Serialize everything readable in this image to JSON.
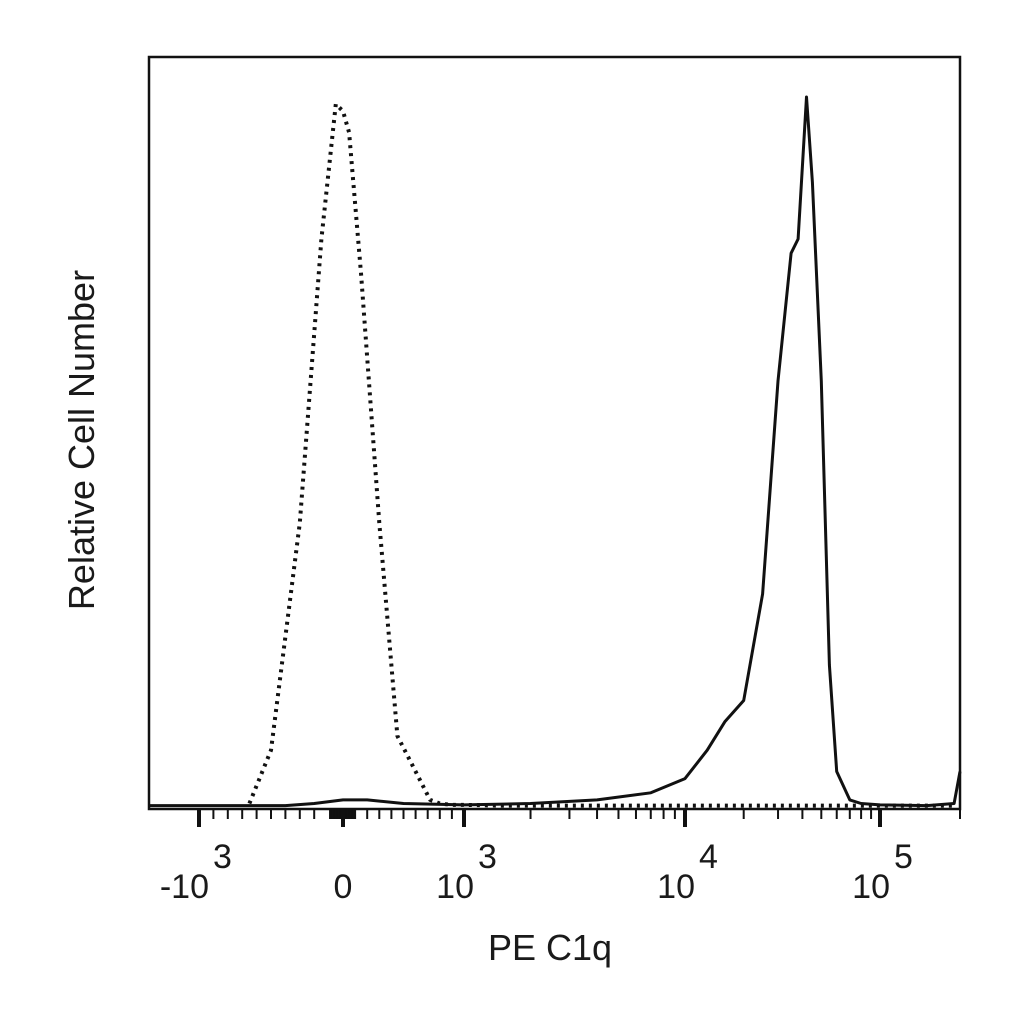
{
  "chart_data": {
    "type": "line",
    "xlabel": "PE C1q",
    "ylabel": "Relative Cell Number",
    "x_scale": "biexponential",
    "xlim": [
      -2000,
      200000
    ],
    "ylim": [
      0,
      100
    ],
    "grid": false,
    "x_ticks": [
      {
        "value": -1000,
        "base": "-10",
        "exp": "3"
      },
      {
        "value": 0,
        "base": "0",
        "exp": ""
      },
      {
        "value": 1000,
        "base": "10",
        "exp": "3"
      },
      {
        "value": 10000,
        "base": "10",
        "exp": "4"
      },
      {
        "value": 100000,
        "base": "10",
        "exp": "5"
      }
    ],
    "series": [
      {
        "style": "dotted",
        "x": [
          -650,
          -500,
          -300,
          -150,
          -50,
          0,
          50,
          150,
          300,
          450,
          600,
          720,
          800,
          900,
          1000,
          1500,
          5000,
          20000,
          190000
        ],
        "y": [
          0.5,
          8,
          40,
          80,
          99,
          98,
          95,
          75,
          40,
          10,
          5,
          1,
          0.5,
          0.3,
          0.3,
          0.2,
          0.2,
          0.2,
          0.2
        ]
      },
      {
        "style": "solid",
        "x": [
          -2000,
          -400,
          -200,
          0,
          200,
          500,
          1000,
          2000,
          4000,
          7000,
          10000,
          13000,
          16000,
          20000,
          25000,
          30000,
          35000,
          38000,
          42000,
          45000,
          50000,
          55000,
          60000,
          70000,
          80000,
          100000,
          150000,
          190000,
          200000
        ],
        "y": [
          0.2,
          0.2,
          0.5,
          1,
          1,
          0.5,
          0.3,
          0.5,
          1,
          2,
          4,
          8,
          12,
          15,
          30,
          60,
          78,
          80,
          100,
          88,
          60,
          20,
          5,
          1,
          0.5,
          0.3,
          0.2,
          0.5,
          5
        ]
      }
    ]
  }
}
